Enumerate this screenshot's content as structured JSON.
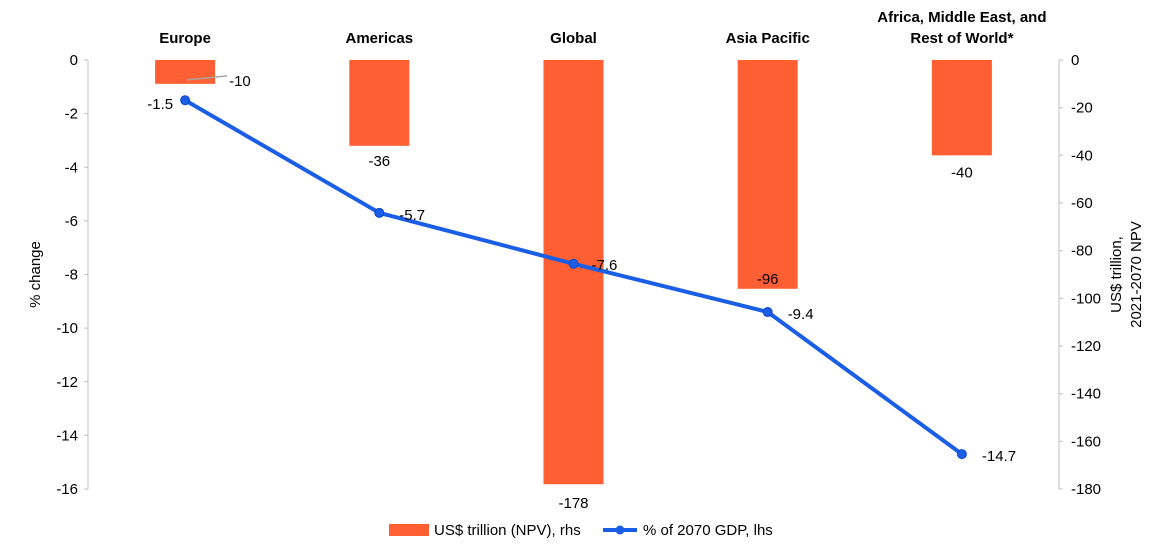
{
  "chart_data": {
    "type": "bar",
    "categories": [
      "Europe",
      "Americas",
      "Global",
      "Asia Pacific",
      "Africa, Middle East, and Rest of World*"
    ],
    "category_label_lines": [
      [
        "Europe"
      ],
      [
        "Americas"
      ],
      [
        "Global"
      ],
      [
        "Asia Pacific"
      ],
      [
        "Africa, Middle East, and",
        "Rest of World*"
      ]
    ],
    "series": [
      {
        "name": "US$ trillion (NPV), rhs",
        "type": "bar",
        "axis": "right",
        "values": [
          -10,
          -36,
          -178,
          -96,
          -40
        ],
        "labels": [
          "-10",
          "-36",
          "-178",
          "-96",
          "-40"
        ],
        "color": "#FF5F33"
      },
      {
        "name": "% of 2070 GDP, lhs",
        "type": "line",
        "axis": "left",
        "values": [
          -1.5,
          -5.7,
          -7.6,
          -9.4,
          -14.7
        ],
        "labels": [
          "-1.5",
          "-5.7",
          "-7.6",
          "-9.4",
          "-14.7"
        ],
        "color": "#1A5EE6"
      }
    ],
    "ylabel_left": "% change",
    "ylabel_right_lines": [
      "US$ trillion,",
      "2021-2070 NPV"
    ],
    "ylim_left": [
      -16,
      0
    ],
    "yticks_left": [
      0,
      -2,
      -4,
      -6,
      -8,
      -10,
      -12,
      -14,
      -16
    ],
    "ylim_right": [
      -180,
      0
    ],
    "yticks_right": [
      0,
      -20,
      -40,
      -60,
      -80,
      -100,
      -120,
      -140,
      -160,
      -180
    ],
    "grid": false,
    "legend_position": "bottom"
  }
}
